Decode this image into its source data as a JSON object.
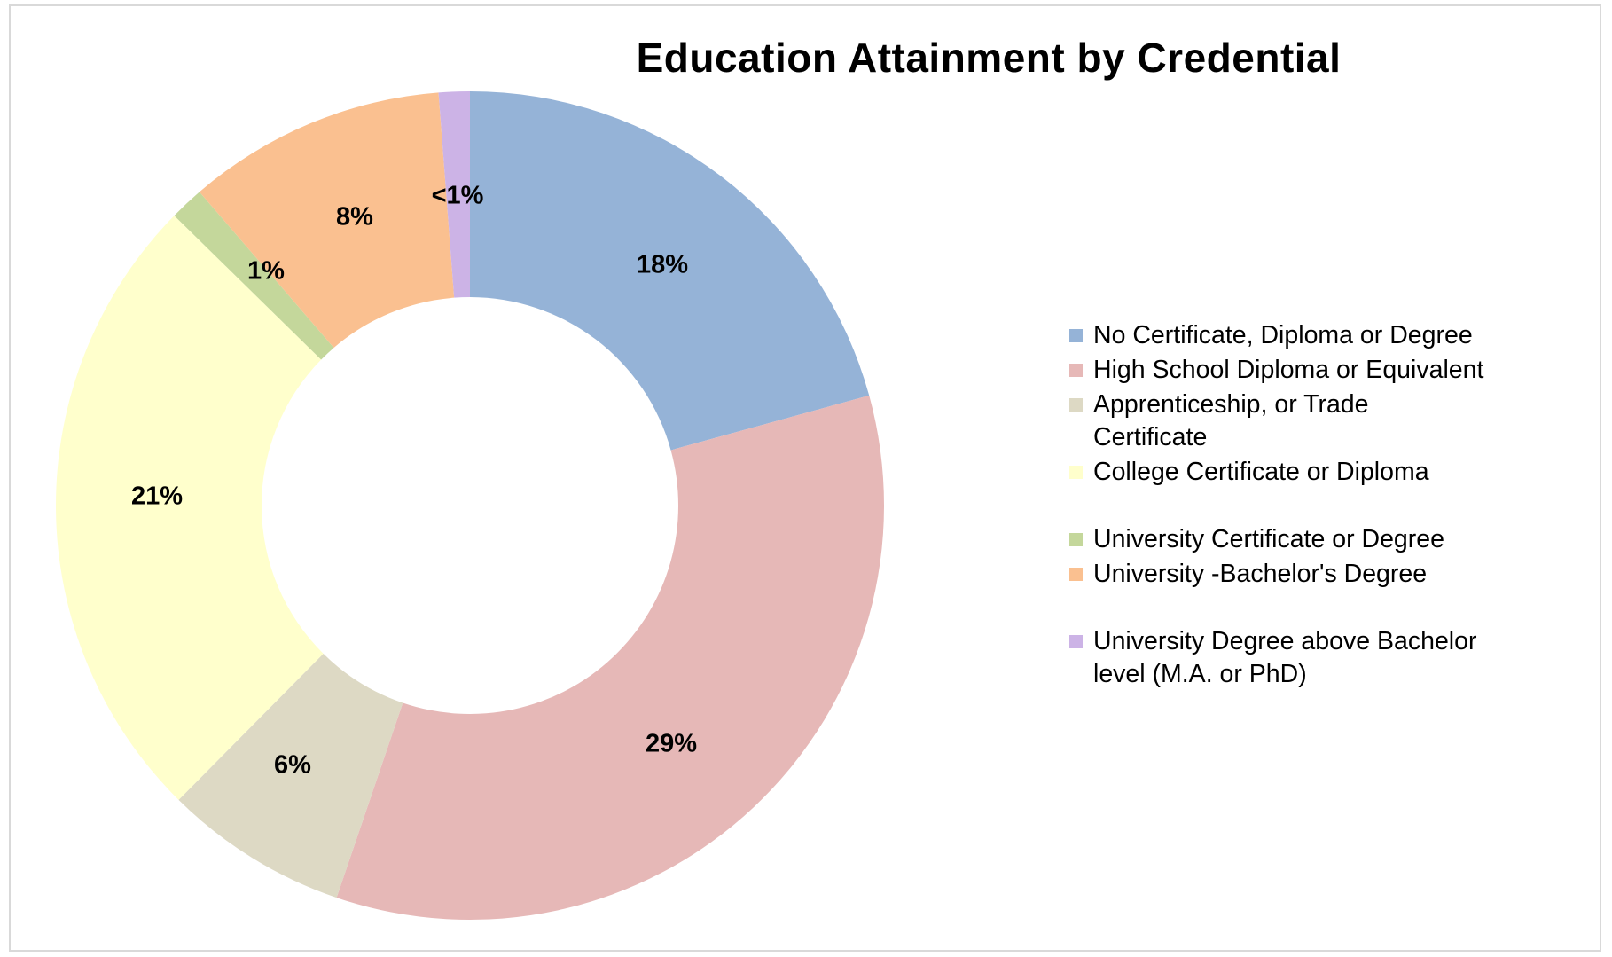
{
  "chart_data": {
    "type": "pie",
    "style": "donut",
    "title": "Education Attainment by Credential",
    "legend_position": "right",
    "slices": [
      {
        "name": "No Certificate, Diploma or Degree",
        "value": 18,
        "label": "18%",
        "color": "#95b3d7"
      },
      {
        "name": "High School Diploma or Equivalent",
        "value": 29,
        "label": "29%",
        "color": "#e6b8b7"
      },
      {
        "name": "Apprenticeship, or Trade Certificate",
        "value": 6,
        "label": "6%",
        "color": "#ddd9c4"
      },
      {
        "name": "College Certificate or Diploma",
        "value": 21,
        "label": "21%",
        "color": "#ffffcc"
      },
      {
        "name": "University Certificate or Degree",
        "value": 1,
        "label": "1%",
        "color": "#c4d79b"
      },
      {
        "name": "University -Bachelor's Degree",
        "value": 8,
        "label": "8%",
        "color": "#fac090"
      },
      {
        "name": "University Degree above Bachelor level (M.A. or PhD)",
        "value": 1,
        "label": "<1%",
        "color": "#ccb3e6"
      }
    ]
  }
}
